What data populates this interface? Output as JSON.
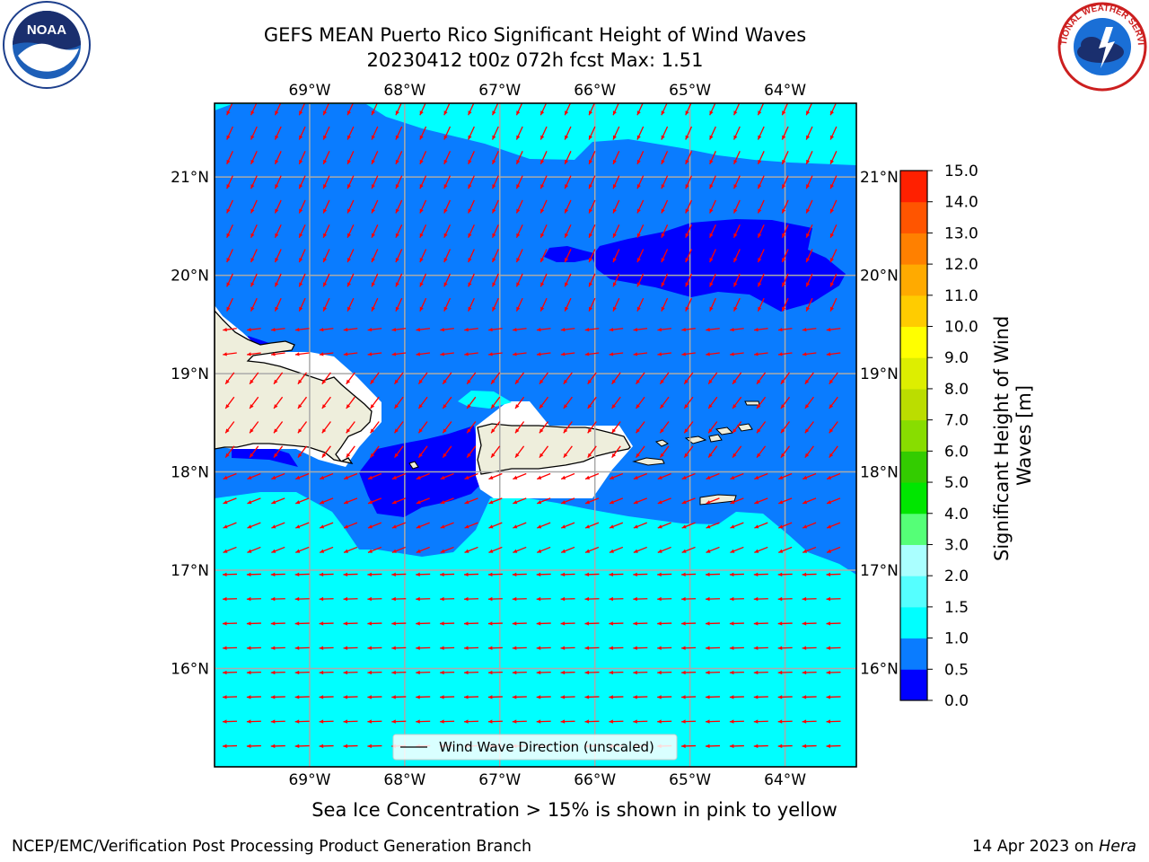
{
  "title": {
    "line1": "GEFS MEAN Puerto Rico Significant Height of Wind Waves",
    "line2": "20230412 t00z 072h fcst   Max: 1.51"
  },
  "logos": {
    "left": {
      "name": "noaa-logo",
      "text": "NOAA"
    },
    "right": {
      "name": "nws-logo",
      "text": "NATIONAL WEATHER SERVICE"
    }
  },
  "map": {
    "lon_range": [
      -70.0,
      -63.25
    ],
    "lat_range": [
      15.0,
      21.75
    ],
    "lon_ticks": [
      "69°W",
      "68°W",
      "67°W",
      "66°W",
      "65°W",
      "64°W"
    ],
    "lon_tick_values": [
      -69,
      -68,
      -67,
      -66,
      -65,
      -64
    ],
    "lat_ticks": [
      "21°N",
      "20°N",
      "19°N",
      "18°N",
      "17°N",
      "16°N"
    ],
    "lat_tick_values": [
      21,
      20,
      19,
      18,
      17,
      16
    ],
    "grid": true,
    "legend_label": "Wind Wave Direction (unscaled)",
    "legend_placement": "bottom-center",
    "vector_color": "#ff0000",
    "land_color": "#eeeedc"
  },
  "colorbar": {
    "label": "Significant Height of Wind Waves [m]",
    "tick_labels": [
      "0.0",
      "0.5",
      "1.0",
      "1.5",
      "2.0",
      "3.0",
      "4.0",
      "5.0",
      "6.0",
      "7.0",
      "8.0",
      "9.0",
      "10.0",
      "11.0",
      "12.0",
      "13.0",
      "14.0",
      "15.0"
    ],
    "colors": [
      "#0000ff",
      "#0a7cff",
      "#00ffff",
      "#55ffff",
      "#aaffff",
      "#55ff77",
      "#00e600",
      "#33cc00",
      "#88dd00",
      "#bbdd00",
      "#ddee00",
      "#ffff00",
      "#ffcc00",
      "#ffaa00",
      "#ff8000",
      "#ff5500",
      "#ff2000"
    ]
  },
  "bottom_note": "Sea Ice Concentration > 15% is shown in pink to yellow",
  "credits": {
    "left": "NCEP/EMC/Verification Post Processing Product Generation Branch",
    "right_prefix": "14 Apr 2023 on ",
    "right_emph": "Hera"
  }
}
